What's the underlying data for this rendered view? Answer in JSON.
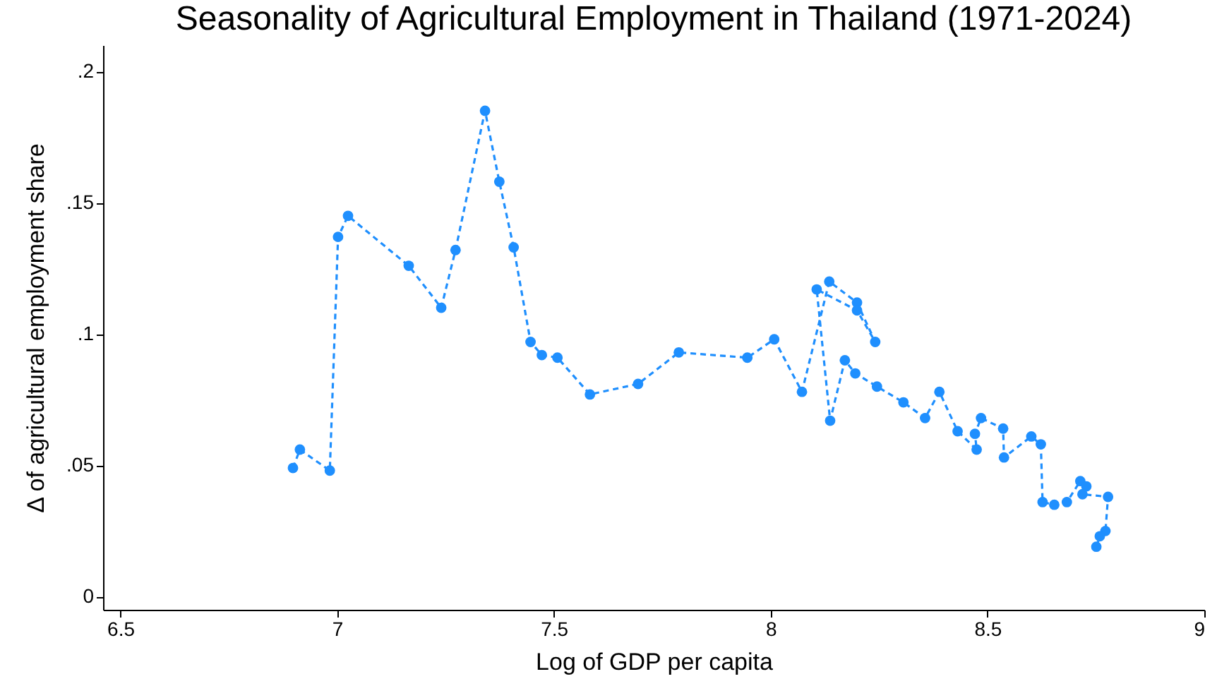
{
  "chart_data": {
    "type": "line",
    "title": "Seasonality of Agricultural Employment in Thailand (1971-2024)",
    "xlabel": "Log of GDP per capita",
    "ylabel": "Δ of agricultural employment share",
    "x": [
      6.898,
      6.914,
      6.983,
      7.002,
      7.025,
      7.165,
      7.24,
      7.273,
      7.341,
      7.374,
      7.407,
      7.446,
      7.472,
      7.508,
      7.583,
      7.694,
      7.788,
      7.946,
      8.008,
      8.072,
      8.135,
      8.199,
      8.241,
      8.199,
      8.106,
      8.137,
      8.171,
      8.195,
      8.245,
      8.306,
      8.356,
      8.389,
      8.431,
      8.475,
      8.471,
      8.485,
      8.536,
      8.538,
      8.601,
      8.623,
      8.627,
      8.654,
      8.683,
      8.714,
      8.728,
      8.719,
      8.778,
      8.772,
      8.759,
      8.751
    ],
    "series": [
      {
        "color": "#1f8ffe",
        "values": [
          0.049,
          0.056,
          0.048,
          0.137,
          0.145,
          0.126,
          0.11,
          0.132,
          0.185,
          0.158,
          0.133,
          0.097,
          0.092,
          0.091,
          0.077,
          0.081,
          0.093,
          0.091,
          0.098,
          0.078,
          0.12,
          0.112,
          0.097,
          0.109,
          0.117,
          0.067,
          0.09,
          0.085,
          0.08,
          0.074,
          0.068,
          0.078,
          0.063,
          0.056,
          0.062,
          0.068,
          0.064,
          0.053,
          0.061,
          0.058,
          0.036,
          0.035,
          0.036,
          0.044,
          0.042,
          0.039,
          0.038,
          0.025,
          0.023,
          0.019
        ]
      }
    ],
    "xlim": [
      6.46,
      9
    ],
    "ylim": [
      -0.005,
      0.21
    ],
    "xticks": [
      6.5,
      7,
      7.5,
      8,
      8.5,
      9
    ],
    "yticks": [
      0,
      {
        "value": 0.05,
        "label": ".05"
      },
      {
        "value": 0.1,
        "label": ".1"
      },
      {
        "value": 0.15,
        "label": ".15"
      },
      {
        "value": 0.2,
        "label": ".2"
      }
    ],
    "grid": false,
    "marker": "circle",
    "line_style": "dashed"
  }
}
